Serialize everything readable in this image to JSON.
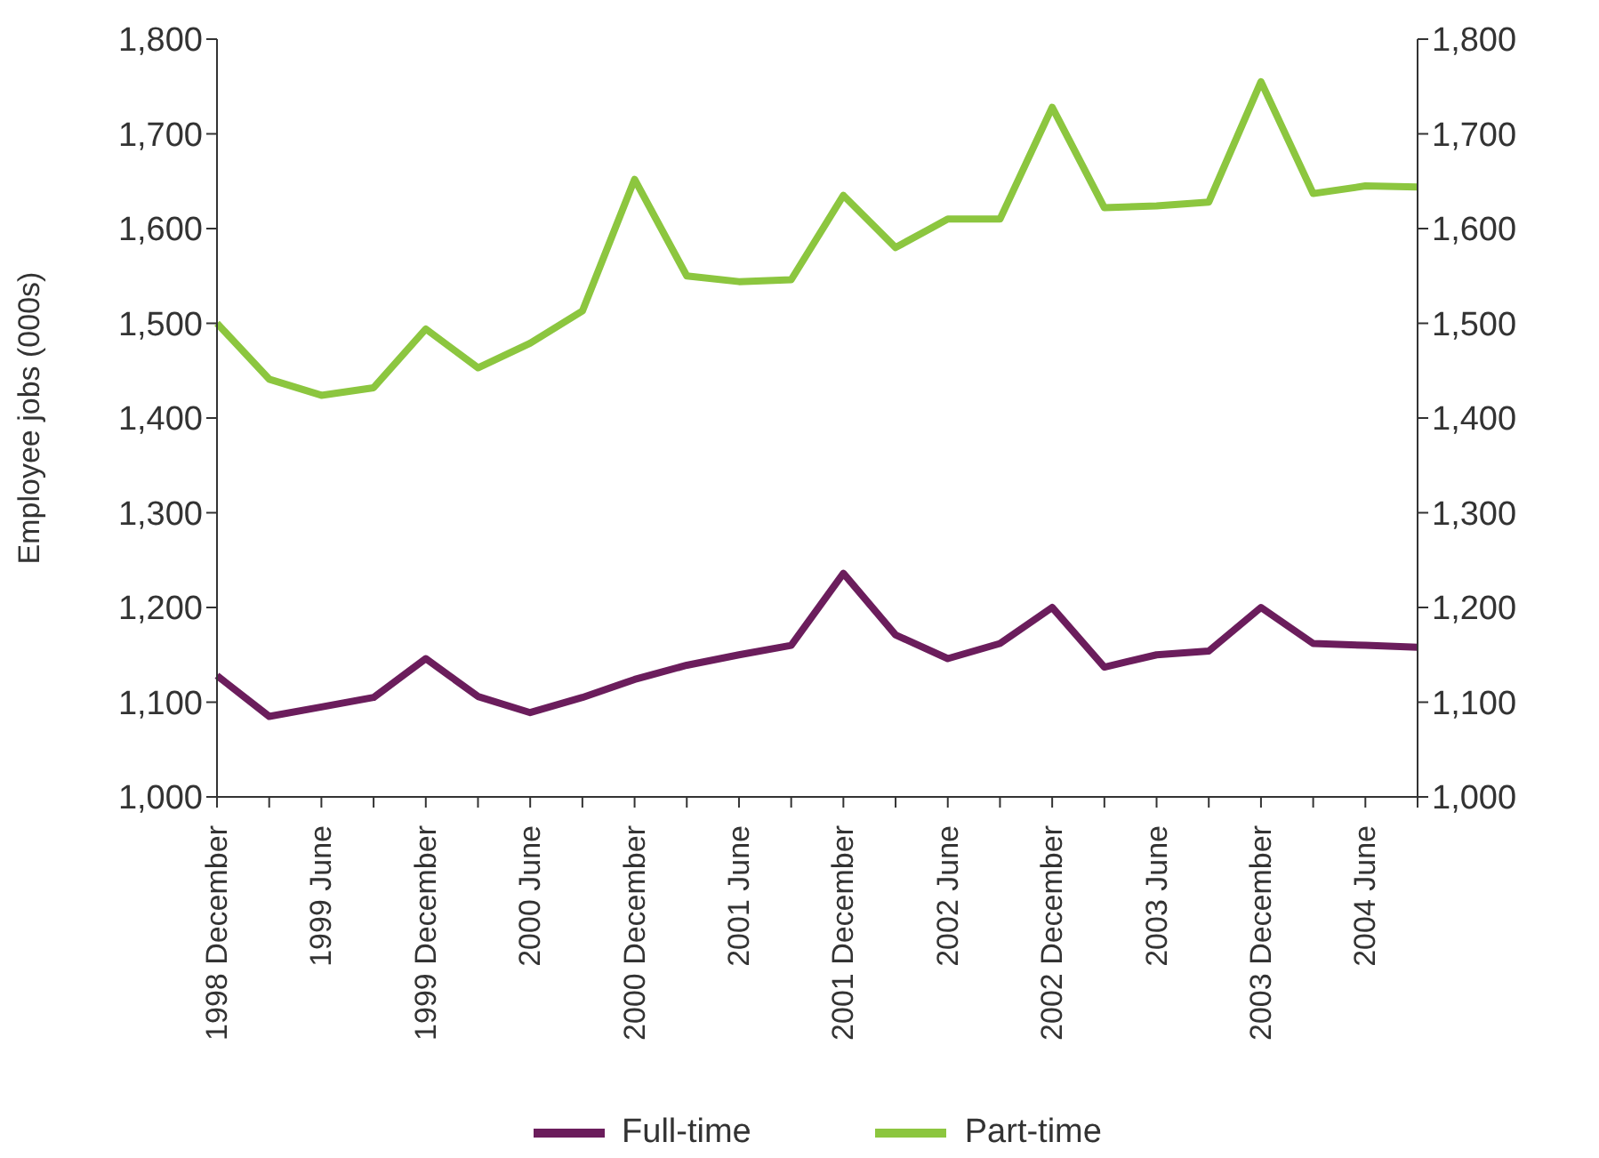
{
  "chart_data": {
    "type": "line",
    "ylabel": "Employee jobs (000s)",
    "categories": [
      "1998 December",
      null,
      "1999 June",
      null,
      "1999 December",
      null,
      "2000 June",
      null,
      "2000 December",
      null,
      "2001 June",
      null,
      "2001 December",
      null,
      "2002 June",
      null,
      "2002 December",
      null,
      "2003 June",
      null,
      "2003 December",
      null,
      "2004 June",
      null
    ],
    "series": [
      {
        "name": "Full-time",
        "color": "#6b1d5c",
        "values": [
          1128,
          1085,
          1095,
          1105,
          1146,
          1106,
          1089,
          1105,
          1124,
          1139,
          1150,
          1160,
          1236,
          1171,
          1146,
          1162,
          1200,
          1137,
          1150,
          1154,
          1200,
          1162,
          1160,
          1158
        ]
      },
      {
        "name": "Part-time",
        "color": "#8cc63f",
        "values": [
          1500,
          1441,
          1424,
          1432,
          1494,
          1453,
          1479,
          1513,
          1652,
          1550,
          1544,
          1546,
          1635,
          1580,
          1610,
          1610,
          1728,
          1622,
          1624,
          1628,
          1755,
          1637,
          1645,
          1644
        ]
      }
    ],
    "ylim": [
      1000,
      1800
    ],
    "yticks": [
      {
        "value": 1000,
        "label": "1,000"
      },
      {
        "value": 1100,
        "label": "1,100"
      },
      {
        "value": 1200,
        "label": "1,200"
      },
      {
        "value": 1300,
        "label": "1,300"
      },
      {
        "value": 1400,
        "label": "1,400"
      },
      {
        "value": 1500,
        "label": "1,500"
      },
      {
        "value": 1600,
        "label": "1,600"
      },
      {
        "value": 1700,
        "label": "1,700"
      },
      {
        "value": 1800,
        "label": "1,800"
      }
    ],
    "y2lim": [
      1000,
      1800
    ],
    "y2ticks": [
      {
        "value": 1000,
        "label": "1,000"
      },
      {
        "value": 1100,
        "label": "1,100"
      },
      {
        "value": 1200,
        "label": "1,200"
      },
      {
        "value": 1300,
        "label": "1,300"
      },
      {
        "value": 1400,
        "label": "1,400"
      },
      {
        "value": 1500,
        "label": "1,500"
      },
      {
        "value": 1600,
        "label": "1,600"
      },
      {
        "value": 1700,
        "label": "1,700"
      },
      {
        "value": 1800,
        "label": "1,800"
      }
    ],
    "grid": false,
    "legend": "bottom",
    "marker": "none",
    "line_style": "solid"
  }
}
